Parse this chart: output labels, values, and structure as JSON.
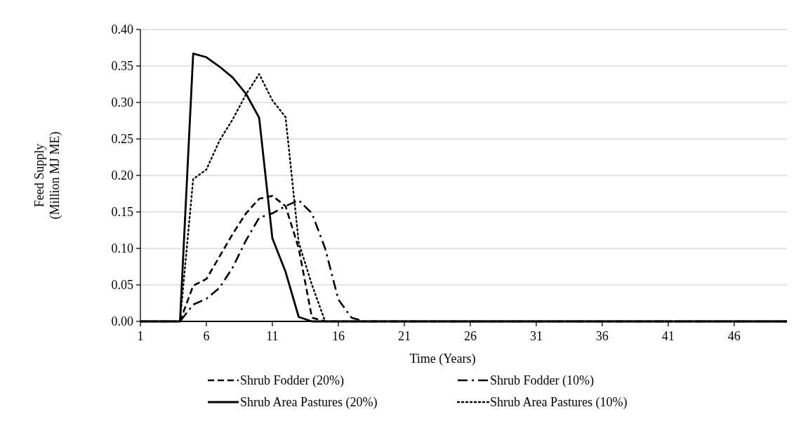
{
  "chart_data": {
    "type": "line",
    "xlabel": "Time (Years)",
    "ylabel": "Feed Supply\n(Million MJ ME)",
    "x": [
      1,
      2,
      3,
      4,
      5,
      6,
      7,
      8,
      9,
      10,
      11,
      12,
      13,
      14,
      15,
      16,
      17,
      18,
      19,
      20,
      21,
      22,
      23,
      24,
      25,
      26,
      27,
      28,
      29,
      30,
      31,
      32,
      33,
      34,
      35,
      36,
      37,
      38,
      39,
      40,
      41,
      42,
      43,
      44,
      45,
      46,
      47,
      48,
      49,
      50
    ],
    "xlim": [
      1,
      50
    ],
    "xticks": [
      1,
      6,
      11,
      16,
      21,
      26,
      31,
      36,
      41,
      46
    ],
    "ylim": [
      0,
      0.4
    ],
    "yticks": [
      {
        "value": 0,
        "label": "0.00"
      },
      {
        "value": 0.05,
        "label": "0.05"
      },
      {
        "value": 0.1,
        "label": "0.10"
      },
      {
        "value": 0.15,
        "label": "0.15"
      },
      {
        "value": 0.2,
        "label": "0.20"
      },
      {
        "value": 0.25,
        "label": "0.25"
      },
      {
        "value": 0.3,
        "label": "0.30"
      },
      {
        "value": 0.35,
        "label": "0.35"
      },
      {
        "value": 0.4,
        "label": "0.40"
      }
    ],
    "grid": "y",
    "legend": "bottom",
    "series": [
      {
        "name": "Shrub Fodder (20%)",
        "color": "#000000",
        "line_style": "dashed",
        "values": [
          0,
          0,
          0,
          0,
          0.049,
          0.058,
          0.089,
          0.12,
          0.148,
          0.168,
          0.172,
          0.158,
          0.1,
          0.005,
          0,
          0,
          0,
          0,
          0,
          0,
          0,
          0,
          0,
          0,
          0,
          0,
          0,
          0,
          0,
          0,
          0,
          0,
          0,
          0,
          0,
          0,
          0,
          0,
          0,
          0,
          0,
          0,
          0,
          0,
          0,
          0,
          0,
          0,
          0,
          0
        ]
      },
      {
        "name": "Shrub Fodder (10%)",
        "color": "#000000",
        "line_style": "dashdot",
        "values": [
          0,
          0,
          0,
          0,
          0.023,
          0.031,
          0.046,
          0.074,
          0.111,
          0.142,
          0.148,
          0.158,
          0.166,
          0.148,
          0.1,
          0.03,
          0.005,
          0,
          0,
          0,
          0,
          0,
          0,
          0,
          0,
          0,
          0,
          0,
          0,
          0,
          0,
          0,
          0,
          0,
          0,
          0,
          0,
          0,
          0,
          0,
          0,
          0,
          0,
          0,
          0,
          0,
          0,
          0,
          0,
          0
        ]
      },
      {
        "name": "Shrub Area Pastures (20%)",
        "color": "#000000",
        "line_style": "solid",
        "values": [
          0,
          0,
          0,
          0,
          0.367,
          0.362,
          0.349,
          0.334,
          0.312,
          0.279,
          0.114,
          0.068,
          0.006,
          0,
          0,
          0,
          0,
          0,
          0,
          0,
          0,
          0,
          0,
          0,
          0,
          0,
          0,
          0,
          0,
          0,
          0,
          0,
          0,
          0,
          0,
          0,
          0,
          0,
          0,
          0,
          0,
          0,
          0,
          0,
          0,
          0,
          0,
          0,
          0,
          0
        ]
      },
      {
        "name": "Shrub Area Pastures (10%)",
        "color": "#000000",
        "line_style": "dotted",
        "values": [
          0,
          0,
          0,
          0,
          0.195,
          0.208,
          0.248,
          0.277,
          0.311,
          0.339,
          0.303,
          0.28,
          0.108,
          0.05,
          0,
          0,
          0,
          0,
          0,
          0,
          0,
          0,
          0,
          0,
          0,
          0,
          0,
          0,
          0,
          0,
          0,
          0,
          0,
          0,
          0,
          0,
          0,
          0,
          0,
          0,
          0,
          0,
          0,
          0,
          0,
          0,
          0,
          0,
          0,
          0
        ]
      }
    ]
  }
}
